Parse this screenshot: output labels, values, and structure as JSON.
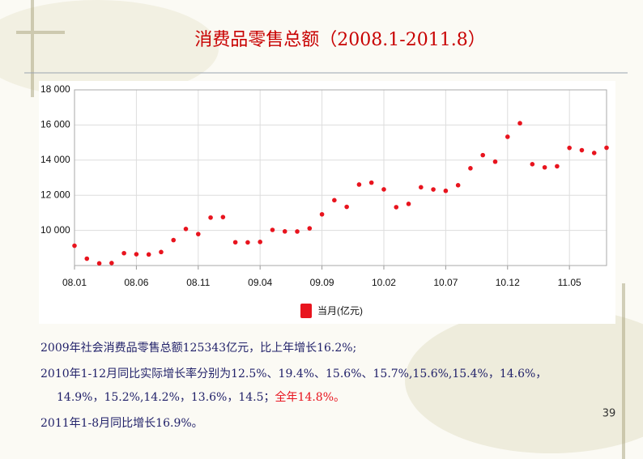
{
  "chart_data": {
    "type": "line",
    "title": "消费品零售总额（2008.1-2011.8）",
    "categories": [
      "08.01",
      null,
      null,
      null,
      null,
      "08.06",
      null,
      null,
      null,
      null,
      "08.11",
      null,
      null,
      null,
      null,
      "09.04",
      null,
      null,
      null,
      null,
      "09.09",
      null,
      null,
      null,
      null,
      "10.02",
      null,
      null,
      null,
      null,
      "10.07",
      null,
      null,
      null,
      null,
      "10.12",
      null,
      null,
      null,
      null,
      "11.05",
      null,
      null,
      null
    ],
    "series": [
      {
        "name": "当月(亿元)",
        "color": "#e8141e",
        "values": [
          9127,
          8390,
          8123,
          8142,
          8703,
          8642,
          8629,
          8767,
          9447,
          10083,
          9790,
          10729,
          10757,
          9324,
          9317,
          9343,
          10028,
          9942,
          9937,
          10115,
          10913,
          11718,
          11339,
          12610,
          12718,
          12334,
          11322,
          11510,
          12455,
          12330,
          12252,
          12570,
          13537,
          14285,
          13911,
          15329,
          16100,
          13769,
          13588,
          13649,
          14697,
          14565,
          14408,
          14705
        ]
      }
    ],
    "ylim": [
      8000,
      18000
    ],
    "yticks": [
      {
        "value": 10000,
        "label": "10 000"
      },
      {
        "value": 12000,
        "label": "12 000"
      },
      {
        "value": 14000,
        "label": "14 000"
      },
      {
        "value": 16000,
        "label": "16 000"
      },
      {
        "value": 18000,
        "label": "18 000"
      }
    ],
    "grid": true,
    "legend": "bottom"
  },
  "notes": [
    {
      "text": "2009年社会消费品零售总额125343亿元，比上年增长16.2%;"
    },
    {
      "text": "2010年1-12月同比实际增长率分别为12.5%、19.4%、15.6%、15.7%,15.6%,15.4%，14.6%，"
    },
    {
      "text": "14.9%，15.2%,14.2%，13.6%，14.5；",
      "highlight": "全年14.8%。"
    },
    {
      "text": "2011年1-8月同比增长16.9%。"
    }
  ],
  "page_number": "39"
}
